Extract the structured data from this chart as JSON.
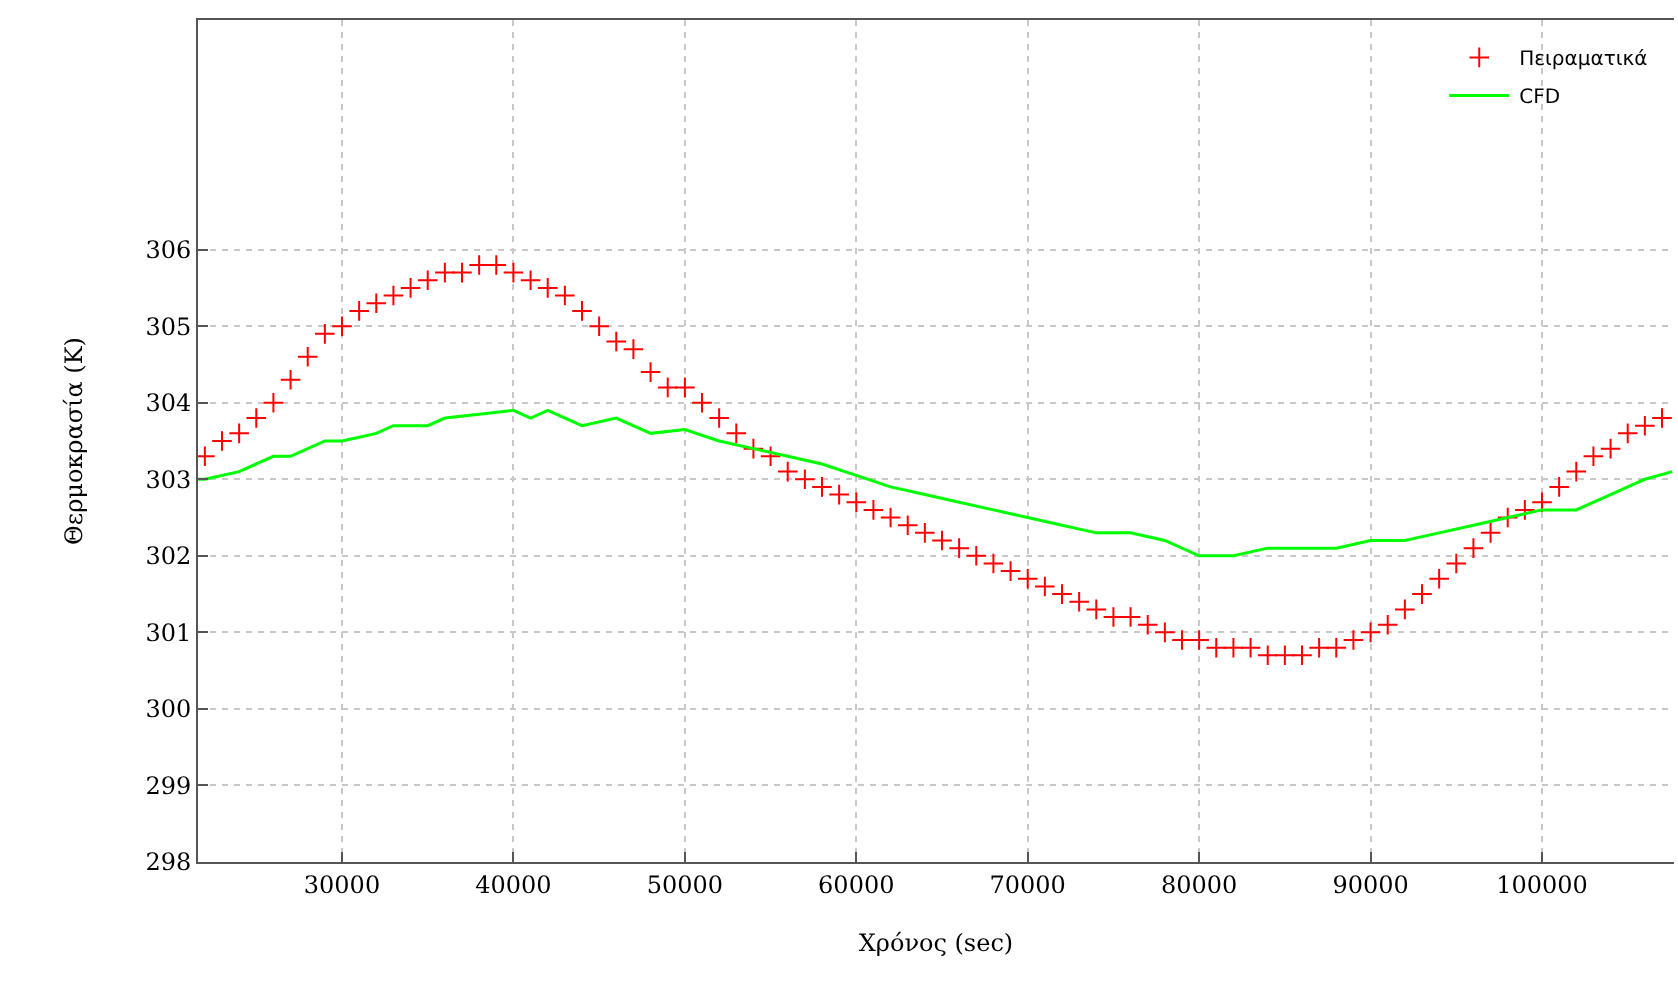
{
  "chart_data": {
    "type": "line",
    "xlabel": "Χρόνος (sec)",
    "ylabel": "Θερμοκρασία (K)",
    "xlim": [
      21600,
      107700
    ],
    "xticks": [
      30000,
      40000,
      50000,
      60000,
      70000,
      80000,
      90000,
      100000
    ],
    "ylim": [
      298,
      309
    ],
    "yticks": [
      298,
      299,
      300,
      301,
      302,
      303,
      304,
      305,
      306
    ],
    "grid": true,
    "legend": "top right",
    "series": [
      {
        "name": "Πειραματικά",
        "type": "scatter",
        "marker": "cross",
        "color": "#ff0000",
        "x": [
          22000,
          23000,
          24000,
          25000,
          26000,
          27000,
          28000,
          29000,
          30000,
          31000,
          32000,
          33000,
          34000,
          35000,
          36000,
          37000,
          38000,
          39000,
          40000,
          41000,
          42000,
          43000,
          44000,
          45000,
          46000,
          47000,
          48000,
          49000,
          50000,
          51000,
          52000,
          53000,
          54000,
          55000,
          56000,
          57000,
          58000,
          59000,
          60000,
          61000,
          62000,
          63000,
          64000,
          65000,
          66000,
          67000,
          68000,
          69000,
          70000,
          71000,
          72000,
          73000,
          74000,
          75000,
          76000,
          77000,
          78000,
          79000,
          80000,
          81000,
          82000,
          83000,
          84000,
          85000,
          86000,
          87000,
          88000,
          89000,
          90000,
          91000,
          92000,
          93000,
          94000,
          95000,
          96000,
          97000,
          98000,
          99000,
          100000,
          101000,
          102000,
          103000,
          104000,
          105000,
          106000,
          107000
        ],
        "values": [
          303.3,
          303.5,
          303.6,
          303.8,
          304.0,
          304.3,
          304.6,
          304.9,
          305.0,
          305.2,
          305.3,
          305.4,
          305.5,
          305.6,
          305.7,
          305.7,
          305.8,
          305.8,
          305.7,
          305.6,
          305.5,
          305.4,
          305.2,
          305.0,
          304.8,
          304.7,
          304.4,
          304.2,
          304.2,
          304.0,
          303.8,
          303.6,
          303.4,
          303.3,
          303.1,
          303.0,
          302.9,
          302.8,
          302.7,
          302.6,
          302.5,
          302.4,
          302.3,
          302.2,
          302.1,
          302.0,
          301.9,
          301.8,
          301.7,
          301.6,
          301.5,
          301.4,
          301.3,
          301.2,
          301.2,
          301.1,
          301.0,
          300.9,
          300.9,
          300.8,
          300.8,
          300.8,
          300.7,
          300.7,
          300.7,
          300.8,
          300.8,
          300.9,
          301.0,
          301.1,
          301.3,
          301.5,
          301.7,
          301.9,
          302.1,
          302.3,
          302.5,
          302.6,
          302.7,
          302.9,
          303.1,
          303.3,
          303.4,
          303.6,
          303.7,
          303.8
        ]
      },
      {
        "name": "CFD",
        "color": "#00ff00",
        "x": [
          21600,
          22000,
          24000,
          25000,
          26000,
          27000,
          28000,
          29000,
          30000,
          31000,
          32000,
          33000,
          34000,
          35000,
          36000,
          38000,
          40000,
          41000,
          42000,
          44000,
          46000,
          48000,
          50000,
          52000,
          54000,
          56000,
          58000,
          60000,
          62000,
          64000,
          66000,
          68000,
          70000,
          72000,
          74000,
          76000,
          78000,
          80000,
          82000,
          84000,
          86000,
          88000,
          90000,
          92000,
          94000,
          96000,
          98000,
          100000,
          102000,
          104000,
          105000,
          106000,
          107600
        ],
        "values": [
          303.0,
          303.0,
          303.1,
          303.2,
          303.3,
          303.3,
          303.4,
          303.5,
          303.5,
          303.55,
          303.6,
          303.7,
          303.7,
          303.7,
          303.8,
          303.85,
          303.9,
          303.8,
          303.9,
          303.7,
          303.8,
          303.6,
          303.65,
          303.5,
          303.4,
          303.3,
          303.2,
          303.05,
          302.9,
          302.8,
          302.7,
          302.6,
          302.5,
          302.4,
          302.3,
          302.3,
          302.2,
          302.0,
          302.0,
          302.1,
          302.1,
          302.1,
          302.2,
          302.2,
          302.3,
          302.4,
          302.5,
          302.6,
          302.6,
          302.8,
          302.9,
          303.0,
          303.1
        ]
      }
    ]
  }
}
